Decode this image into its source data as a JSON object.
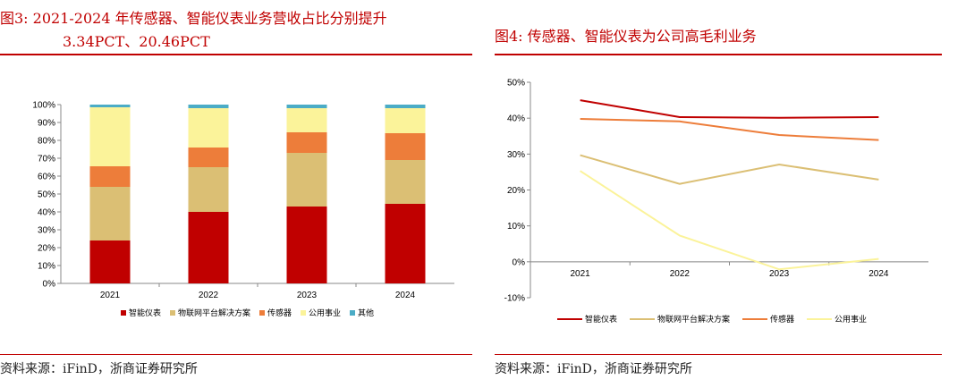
{
  "left": {
    "title_line1": "图3:  2021-2024 年传感器、智能仪表业务营收占比分别提升",
    "title_line2": "3.34PCT、20.46PCT",
    "source": "资料来源：iFinD，浙商证券研究所"
  },
  "right": {
    "title": "图4:  传感器、智能仪表为公司高毛利业务",
    "source": "资料来源：iFinD，浙商证券研究所"
  },
  "chart_data": [
    {
      "type": "bar",
      "stacked": true,
      "percent": true,
      "categories": [
        "2021",
        "2022",
        "2023",
        "2024"
      ],
      "ylim": [
        0,
        100
      ],
      "yticks": [
        "0%",
        "10%",
        "20%",
        "30%",
        "40%",
        "50%",
        "60%",
        "70%",
        "80%",
        "90%",
        "100%"
      ],
      "legend_position": "bottom",
      "series": [
        {
          "name": "智能仪表",
          "color": "#c00000",
          "values": [
            24,
            40,
            43,
            44.5
          ]
        },
        {
          "name": "物联网平台解决方案",
          "color": "#dbbf74",
          "values": [
            30,
            25,
            30,
            24.5
          ]
        },
        {
          "name": "传感器",
          "color": "#ed7d3a",
          "values": [
            11.5,
            11,
            11.5,
            15
          ]
        },
        {
          "name": "公用事业",
          "color": "#fbf39a",
          "values": [
            33,
            22,
            13.5,
            14
          ]
        },
        {
          "name": "其他",
          "color": "#4bacc6",
          "values": [
            1.5,
            2,
            2,
            2
          ]
        }
      ]
    },
    {
      "type": "line",
      "categories": [
        "2021",
        "2022",
        "2023",
        "2024"
      ],
      "ylim": [
        -10,
        50
      ],
      "yticks": [
        "-10%",
        "0%",
        "10%",
        "20%",
        "30%",
        "40%",
        "50%"
      ],
      "legend_position": "bottom",
      "series": [
        {
          "name": "智能仪表",
          "color": "#c00000",
          "values": [
            45,
            40.3,
            40.1,
            40.3
          ]
        },
        {
          "name": "物联网平台解决方案",
          "color": "#dbbf74",
          "values": [
            29.7,
            21.7,
            27.1,
            22.9
          ]
        },
        {
          "name": "传感器",
          "color": "#ed7d3a",
          "values": [
            39.8,
            39.1,
            35.3,
            33.9
          ]
        },
        {
          "name": "公用事业",
          "color": "#fbf39a",
          "values": [
            25.3,
            7.3,
            -2.1,
            0.8
          ]
        }
      ]
    }
  ]
}
